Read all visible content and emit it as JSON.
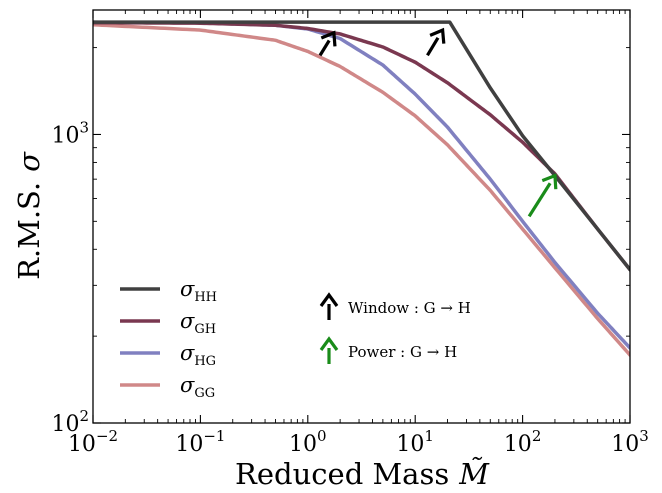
{
  "chart_data": {
    "type": "line",
    "xlabel": "Reduced Mass",
    "xlabel_symbol": "M̃",
    "ylabel": "R.M.S.",
    "ylabel_symbol": "σ",
    "xscale": "log",
    "yscale": "log",
    "xlim": [
      0.01,
      1000
    ],
    "ylim": [
      100,
      2700
    ],
    "x_ticks": [
      {
        "value": 0.01,
        "base": "10",
        "exp": "−2"
      },
      {
        "value": 0.1,
        "base": "10",
        "exp": "−1"
      },
      {
        "value": 1,
        "base": "10",
        "exp": "0"
      },
      {
        "value": 10,
        "base": "10",
        "exp": "1"
      },
      {
        "value": 100,
        "base": "10",
        "exp": "2"
      },
      {
        "value": 1000,
        "base": "10",
        "exp": "3"
      }
    ],
    "y_ticks": [
      {
        "value": 100,
        "base": "10",
        "exp": "2"
      },
      {
        "value": 1000,
        "base": "10",
        "exp": "3"
      }
    ],
    "legend_position": "lower-left",
    "series": [
      {
        "symbol": "σ",
        "subscript": "HH",
        "color": "#404040",
        "x": [
          0.01,
          0.1,
          1,
          10,
          21,
          50,
          100,
          200,
          500,
          1000
        ],
        "y": [
          2450,
          2450,
          2450,
          2450,
          2450,
          1450,
          990,
          720,
          470,
          340
        ]
      },
      {
        "symbol": "σ",
        "subscript": "GH",
        "color": "#7a3850",
        "x": [
          0.01,
          0.1,
          0.5,
          1,
          2,
          5,
          10,
          20,
          50,
          100,
          200,
          500,
          1000
        ],
        "y": [
          2440,
          2430,
          2390,
          2330,
          2230,
          2010,
          1780,
          1510,
          1170,
          940,
          730,
          470,
          340
        ]
      },
      {
        "symbol": "σ",
        "subscript": "HG",
        "color": "#8080c0",
        "x": [
          0.01,
          0.1,
          0.5,
          1,
          2,
          5,
          10,
          20,
          50,
          100,
          200,
          500,
          1000
        ],
        "y": [
          2450,
          2440,
          2390,
          2320,
          2150,
          1740,
          1380,
          1060,
          700,
          500,
          360,
          240,
          182
        ]
      },
      {
        "symbol": "σ",
        "subscript": "GG",
        "color": "#d08888",
        "x": [
          0.01,
          0.1,
          0.5,
          1,
          2,
          5,
          10,
          20,
          50,
          100,
          200,
          500,
          1000
        ],
        "y": [
          2400,
          2300,
          2120,
          1940,
          1720,
          1400,
          1160,
          920,
          640,
          470,
          345,
          230,
          172
        ]
      }
    ],
    "annotations": [
      {
        "type": "arrow",
        "color": "#000000",
        "x_from": 1.3,
        "y_from": 1880,
        "x_to": 1.75,
        "y_to": 2250
      },
      {
        "type": "arrow",
        "color": "#000000",
        "x_from": 13,
        "y_from": 1880,
        "x_to": 18,
        "y_to": 2300
      },
      {
        "type": "arrow",
        "color": "#1a8c1a",
        "x_from": 115,
        "y_from": 520,
        "x_to": 200,
        "y_to": 720
      }
    ],
    "arrow_legend": [
      {
        "color": "#000000",
        "label": "Window :  G → H"
      },
      {
        "color": "#1a8c1a",
        "label": "Power :  G → H"
      }
    ]
  }
}
